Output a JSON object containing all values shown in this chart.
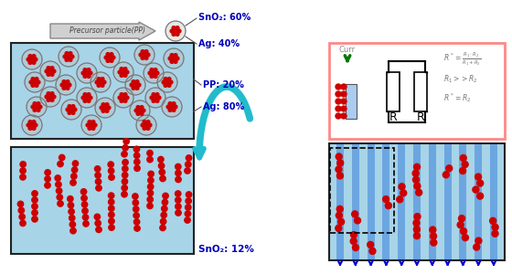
{
  "bg_color": "#ffffff",
  "light_blue": "#a8d4e8",
  "red": "#cc0000",
  "text_blue": "#0000bb",
  "teal": "#22bbcc",
  "label_sno2_60": "SnO₂: 60%",
  "label_ag_40": "Ag: 40%",
  "label_pp_20": "PP: 20%",
  "label_ag_80": "Ag: 80%",
  "label_sno2_12": "SnO₂: 12%",
  "label_precursor": "Precursor particle(PP)",
  "label_curr": "Curr",
  "formula1": "$R^* = \\frac{R_1 \\cdot R_2}{R_1 + R_2}$",
  "formula2": "$R_1 >> R_2$",
  "formula3": "$R^* = R_2$",
  "fig_w": 5.6,
  "fig_h": 3.0,
  "dpi": 100
}
